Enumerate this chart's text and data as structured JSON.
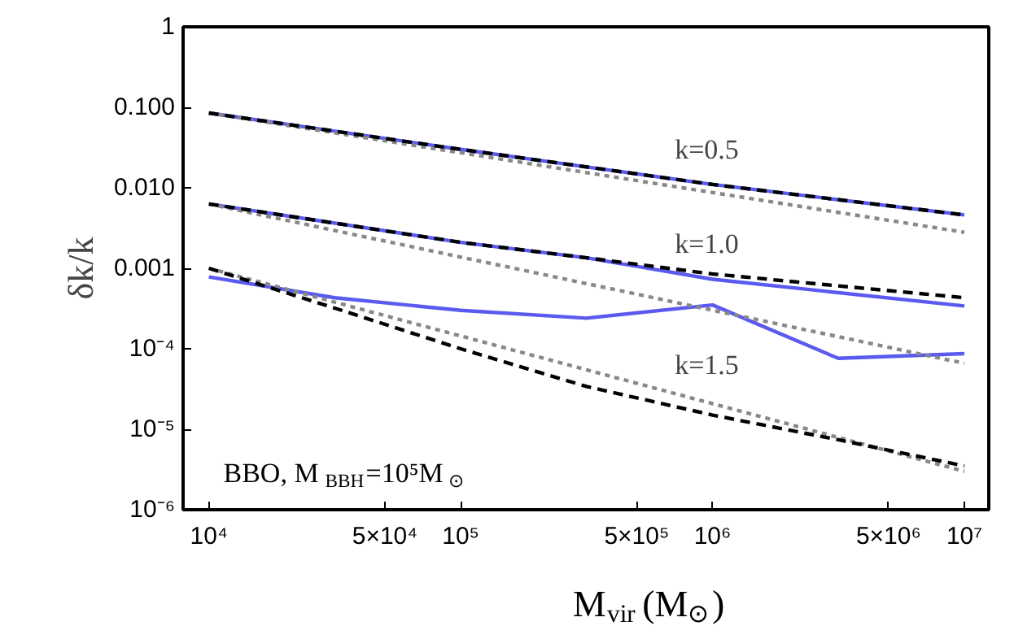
{
  "chart_data": {
    "type": "line",
    "xlabel": "M$_{vir}$(M$_{⊙}$)",
    "ylabel": "δk/k",
    "log": "xy",
    "grid": false,
    "xlim": [
      7900,
      12500000
    ],
    "ylim": [
      1e-06,
      1
    ],
    "xticks": [
      {
        "value": 10000,
        "label": "10⁴"
      },
      {
        "value": 50000,
        "label": "5×10⁴"
      },
      {
        "value": 100000,
        "label": "10⁵"
      },
      {
        "value": 500000,
        "label": "5×10⁵"
      },
      {
        "value": 1000000,
        "label": "10⁶"
      },
      {
        "value": 5000000,
        "label": "5×10⁶"
      },
      {
        "value": 10000000,
        "label": "10⁷"
      }
    ],
    "yticks": [
      1,
      {
        "value": 0.1,
        "label": "0.100"
      },
      {
        "value": 0.01,
        "label": "0.010"
      },
      {
        "value": 0.001,
        "label": "0.001"
      },
      {
        "value": 0.0001,
        "label": "10⁻⁴"
      },
      {
        "value": 1e-05,
        "label": "10⁻⁵"
      },
      {
        "value": 1e-06,
        "label": "10⁻⁶"
      }
    ],
    "series": [
      {
        "color": "#5a5af0",
        "line_style": "solid",
        "x": [
          10000,
          100000,
          1000000,
          10000000
        ],
        "values": [
          0.085,
          0.03,
          0.011,
          0.0046
        ]
      },
      {
        "color": "#5a5af0",
        "line_style": "solid",
        "x": [
          10000,
          100000,
          316000,
          1000000,
          10000000
        ],
        "values": [
          0.0063,
          0.0021,
          0.00135,
          0.00073,
          0.00034
        ]
      },
      {
        "color": "#5a5af0",
        "line_style": "solid",
        "x": [
          10000,
          31600,
          100000,
          316000,
          1000000,
          3160000,
          10000000
        ],
        "values": [
          0.00078,
          0.00043,
          0.0003,
          0.00024,
          0.00035,
          7.6e-05,
          8.7e-05
        ]
      },
      {
        "color": "#888888",
        "line_style": "dotted",
        "x": [
          10000,
          10000000
        ],
        "values": [
          0.085,
          0.0028
        ]
      },
      {
        "color": "#888888",
        "line_style": "dotted",
        "x": [
          10000,
          10000000
        ],
        "values": [
          0.0063,
          6.6e-05
        ]
      },
      {
        "color": "#888888",
        "line_style": "dotted",
        "x": [
          10000,
          10000000
        ],
        "values": [
          0.001,
          3e-06
        ]
      },
      {
        "color": "#000000",
        "line_style": "dashed",
        "x": [
          10000,
          100000,
          1000000,
          10000000
        ],
        "values": [
          0.085,
          0.03,
          0.011,
          0.0046
        ]
      },
      {
        "color": "#000000",
        "line_style": "dashed",
        "x": [
          10000,
          100000,
          316000,
          1000000,
          10000000
        ],
        "values": [
          0.0063,
          0.0021,
          0.00135,
          0.00085,
          0.00043
        ]
      },
      {
        "color": "#000000",
        "line_style": "dashed",
        "x": [
          10000,
          31600,
          100000,
          316000,
          1000000,
          3160000,
          10000000
        ],
        "values": [
          0.001,
          0.00032,
          0.0001,
          3.4e-05,
          1.5e-05,
          7.4e-06,
          3.5e-06
        ]
      }
    ],
    "annotations": [
      "k=0.5",
      "k=1.0",
      "k=1.5",
      "BBO, M$_{BBH}$=10⁵M$_{⊙}$"
    ]
  }
}
